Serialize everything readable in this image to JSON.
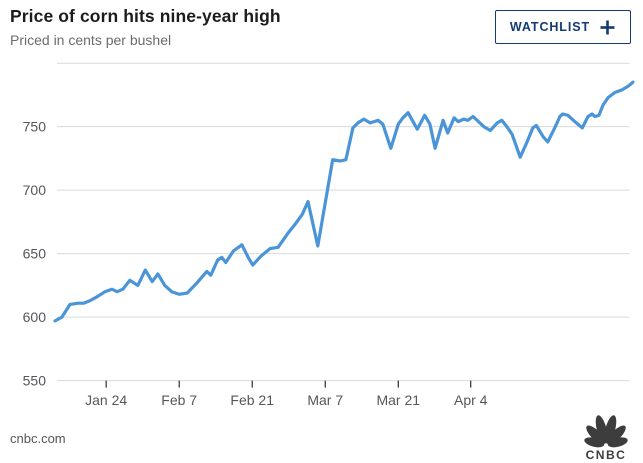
{
  "header": {
    "title": "Price of corn hits nine-year high",
    "subtitle": "Priced in cents per bushel"
  },
  "watchlist_button": {
    "label": "WATCHLIST",
    "plus": "+"
  },
  "footer": {
    "source": "cnbc.com",
    "logo_text": "CNBC"
  },
  "colors": {
    "line": "#4A94D8",
    "grid": "#D9D9D9",
    "axis_text": "#54575C",
    "tick_mark": "#2E2E2E",
    "title": "#1C1C1E",
    "subtitle": "#6B6B6B",
    "navy": "#133A73",
    "logo": "#3D3D3D"
  },
  "chart_data": {
    "type": "line",
    "title": "Price of corn hits nine-year high",
    "subtitle": "Priced in cents per bushel",
    "unit": "cents per bushel",
    "grid": "horizontal",
    "ylim": [
      550,
      800
    ],
    "yticks": [
      550,
      600,
      650,
      700,
      750
    ],
    "ytick_unlabeled": [
      800
    ],
    "xticks": [
      {
        "label": "Jan 24",
        "pct": 8.9
      },
      {
        "label": "Feb 7",
        "pct": 21.6
      },
      {
        "label": "Feb 21",
        "pct": 34.3
      },
      {
        "label": "Mar 7",
        "pct": 47.0
      },
      {
        "label": "Mar 21",
        "pct": 59.7
      },
      {
        "label": "Apr 4",
        "pct": 72.3
      }
    ],
    "series": [
      {
        "name": "Corn price",
        "points": [
          [
            0,
            597
          ],
          [
            1.2,
            600
          ],
          [
            2.6,
            610
          ],
          [
            4.0,
            611
          ],
          [
            5.0,
            611
          ],
          [
            6.1,
            613
          ],
          [
            7.3,
            616
          ],
          [
            8.7,
            620
          ],
          [
            9.9,
            622
          ],
          [
            10.8,
            620
          ],
          [
            11.8,
            622
          ],
          [
            13.0,
            629
          ],
          [
            14.4,
            625
          ],
          [
            15.7,
            637
          ],
          [
            16.9,
            628
          ],
          [
            17.9,
            634
          ],
          [
            19.1,
            625
          ],
          [
            20.3,
            620
          ],
          [
            21.6,
            618
          ],
          [
            23.0,
            619
          ],
          [
            24.7,
            627
          ],
          [
            26.4,
            636
          ],
          [
            27.1,
            633
          ],
          [
            28.3,
            645
          ],
          [
            29.0,
            647
          ],
          [
            29.7,
            643
          ],
          [
            31.0,
            652
          ],
          [
            32.5,
            657
          ],
          [
            33.6,
            647
          ],
          [
            34.4,
            641
          ],
          [
            35.8,
            648
          ],
          [
            37.4,
            654
          ],
          [
            38.8,
            655
          ],
          [
            40.5,
            666
          ],
          [
            41.9,
            674
          ],
          [
            43.0,
            681
          ],
          [
            44.0,
            691
          ],
          [
            45.7,
            656
          ],
          [
            48.3,
            724
          ],
          [
            49.6,
            723
          ],
          [
            50.6,
            724
          ],
          [
            51.8,
            749
          ],
          [
            52.7,
            753
          ],
          [
            53.7,
            756
          ],
          [
            54.8,
            753
          ],
          [
            56.2,
            755
          ],
          [
            57.0,
            752
          ],
          [
            58.4,
            733
          ],
          [
            59.7,
            752
          ],
          [
            60.5,
            757
          ],
          [
            61.4,
            761
          ],
          [
            63.0,
            748
          ],
          [
            64.3,
            759
          ],
          [
            65.2,
            752
          ],
          [
            66.1,
            733
          ],
          [
            67.5,
            755
          ],
          [
            68.3,
            745
          ],
          [
            69.4,
            757
          ],
          [
            70.1,
            754
          ],
          [
            71.1,
            756
          ],
          [
            71.8,
            755
          ],
          [
            72.7,
            758
          ],
          [
            73.9,
            753
          ],
          [
            74.6,
            750
          ],
          [
            75.7,
            747
          ],
          [
            76.9,
            753
          ],
          [
            77.7,
            755
          ],
          [
            78.6,
            750
          ],
          [
            79.5,
            744
          ],
          [
            80.9,
            726
          ],
          [
            82.1,
            738
          ],
          [
            83.1,
            749
          ],
          [
            83.7,
            751
          ],
          [
            84.9,
            742
          ],
          [
            85.7,
            738
          ],
          [
            87.0,
            750
          ],
          [
            87.8,
            758
          ],
          [
            88.3,
            760
          ],
          [
            89.2,
            759
          ],
          [
            90.4,
            754
          ],
          [
            91.7,
            749
          ],
          [
            92.7,
            758
          ],
          [
            93.4,
            760
          ],
          [
            93.9,
            758
          ],
          [
            94.6,
            759
          ],
          [
            95.3,
            767
          ],
          [
            96.2,
            773
          ],
          [
            97.4,
            777
          ],
          [
            98.6,
            779
          ],
          [
            99.7,
            782
          ],
          [
            100.5,
            785
          ]
        ]
      }
    ]
  }
}
